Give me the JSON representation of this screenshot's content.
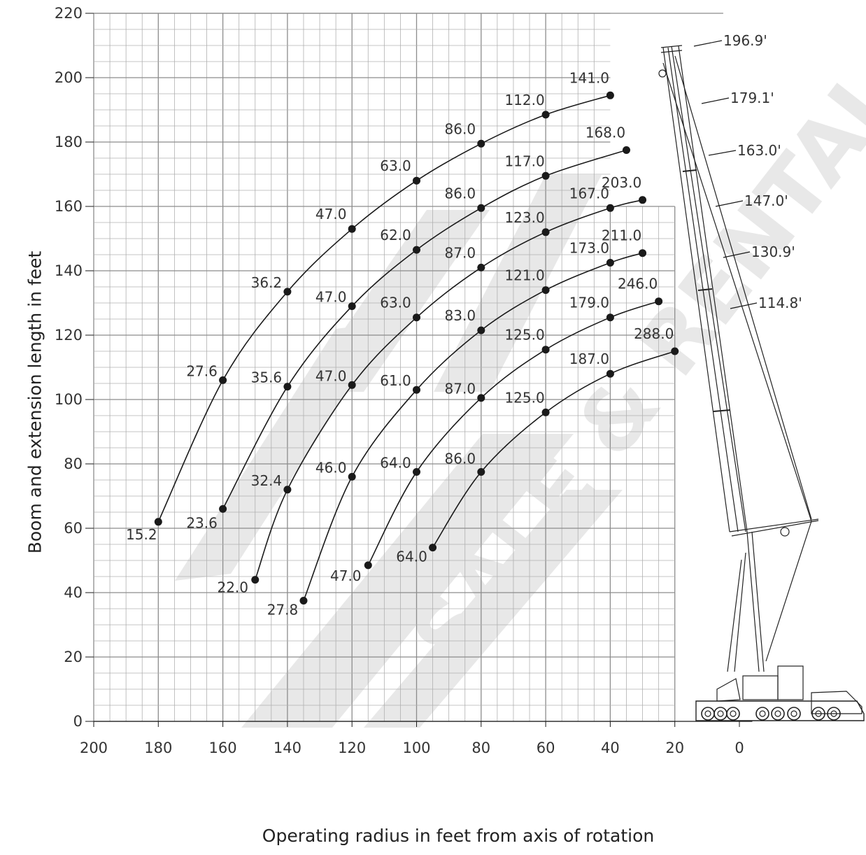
{
  "chart_data": {
    "type": "scatter",
    "title": "",
    "xlabel": "Operating radius in feet from axis of rotation",
    "ylabel": "Boom and extension length in feet",
    "xlim": [
      200,
      -5
    ],
    "ylim": [
      0,
      220
    ],
    "x_ticks": [
      200,
      180,
      160,
      140,
      120,
      100,
      80,
      60,
      40,
      20,
      0
    ],
    "y_ticks": [
      0,
      20,
      40,
      60,
      80,
      100,
      120,
      140,
      160,
      180,
      200,
      220
    ],
    "grid": true,
    "series": [
      {
        "points": [
          {
            "x": 180,
            "y": 62,
            "label": "15.2"
          },
          {
            "x": 160,
            "y": 106,
            "label": "27.6"
          },
          {
            "x": 140,
            "y": 133.5,
            "label": "36.2"
          },
          {
            "x": 120,
            "y": 153,
            "label": "47.0"
          },
          {
            "x": 100,
            "y": 168,
            "label": "63.0"
          },
          {
            "x": 80,
            "y": 179.5,
            "label": "86.0"
          },
          {
            "x": 60,
            "y": 188.5,
            "label": "112.0"
          },
          {
            "x": 40,
            "y": 194.5,
            "label": "141.0"
          }
        ]
      },
      {
        "points": [
          {
            "x": 160,
            "y": 66,
            "label": "23.6"
          },
          {
            "x": 140,
            "y": 104,
            "label": "35.6"
          },
          {
            "x": 120,
            "y": 129,
            "label": "47.0"
          },
          {
            "x": 100,
            "y": 146.5,
            "label": "62.0"
          },
          {
            "x": 80,
            "y": 159.5,
            "label": "86.0"
          },
          {
            "x": 60,
            "y": 169.5,
            "label": "117.0"
          },
          {
            "x": 35,
            "y": 177.5,
            "label": "168.0"
          }
        ]
      },
      {
        "points": [
          {
            "x": 150,
            "y": 44,
            "label": "22.0"
          },
          {
            "x": 140,
            "y": 72,
            "label": "32.4"
          },
          {
            "x": 120,
            "y": 104.5,
            "label": "47.0"
          },
          {
            "x": 100,
            "y": 125.5,
            "label": "63.0"
          },
          {
            "x": 80,
            "y": 141,
            "label": "87.0"
          },
          {
            "x": 60,
            "y": 152,
            "label": "123.0"
          },
          {
            "x": 40,
            "y": 159.5,
            "label": "167.0"
          },
          {
            "x": 30,
            "y": 162,
            "label": "203.0"
          }
        ]
      },
      {
        "points": [
          {
            "x": 135,
            "y": 37.5,
            "label": "27.8"
          },
          {
            "x": 120,
            "y": 76,
            "label": "46.0"
          },
          {
            "x": 100,
            "y": 103,
            "label": "61.0"
          },
          {
            "x": 80,
            "y": 121.5,
            "label": "83.0"
          },
          {
            "x": 60,
            "y": 134,
            "label": "121.0"
          },
          {
            "x": 40,
            "y": 142.5,
            "label": "173.0"
          },
          {
            "x": 30,
            "y": 145.5,
            "label": "211.0"
          }
        ]
      },
      {
        "points": [
          {
            "x": 115,
            "y": 48.5,
            "label": "47.0"
          },
          {
            "x": 100,
            "y": 77.5,
            "label": "64.0"
          },
          {
            "x": 80,
            "y": 100.5,
            "label": "87.0"
          },
          {
            "x": 60,
            "y": 115.5,
            "label": "125.0"
          },
          {
            "x": 40,
            "y": 125.5,
            "label": "179.0"
          },
          {
            "x": 25,
            "y": 130.5,
            "label": "246.0"
          }
        ]
      },
      {
        "points": [
          {
            "x": 95,
            "y": 54,
            "label": "64.0"
          },
          {
            "x": 80,
            "y": 77.5,
            "label": "86.0"
          },
          {
            "x": 60,
            "y": 96,
            "label": "125.0"
          },
          {
            "x": 40,
            "y": 108,
            "label": "187.0"
          },
          {
            "x": 20,
            "y": 115,
            "label": "288.0"
          }
        ]
      }
    ],
    "boom_length_labels": [
      "196.9'",
      "179.1'",
      "163.0'",
      "147.0'",
      "130.9'",
      "114.8'"
    ],
    "watermark": "ALL CRANE SALE & RENTAL",
    "colors": {
      "line": "#1a1a1a",
      "grid": "#b0b0b0",
      "grid_major": "#8c8c8c",
      "text": "#333333",
      "watermark": "#e6e6e6"
    }
  }
}
